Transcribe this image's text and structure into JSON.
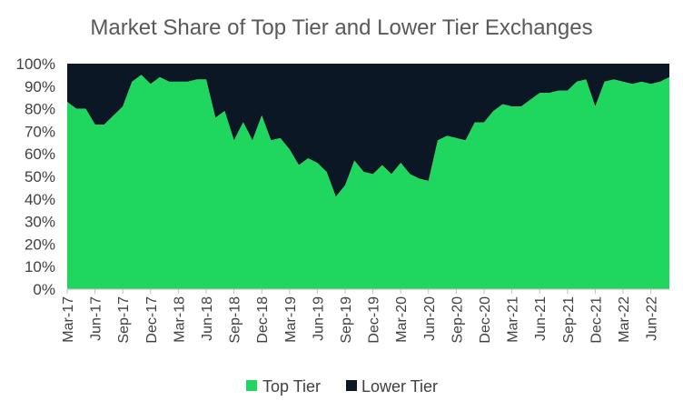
{
  "chart_data": {
    "type": "area",
    "stacked": "percent",
    "title": "Market Share of Top Tier and Lower Tier Exchanges",
    "xlabel": "",
    "ylabel": "",
    "ylim": [
      0,
      100
    ],
    "y_tick_labels": [
      "0%",
      "10%",
      "20%",
      "30%",
      "40%",
      "50%",
      "60%",
      "70%",
      "80%",
      "90%",
      "100%"
    ],
    "x_tick_labels": [
      "Mar-17",
      "Jun-17",
      "Sep-17",
      "Dec-17",
      "Mar-18",
      "Jun-18",
      "Sep-18",
      "Dec-18",
      "Mar-19",
      "Jun-19",
      "Sep-19",
      "Dec-19",
      "Mar-20",
      "Jun-20",
      "Sep-20",
      "Dec-20",
      "Mar-21",
      "Jun-21",
      "Sep-21",
      "Dec-21",
      "Mar-22",
      "Jun-22"
    ],
    "x": [
      "Mar-17",
      "Apr-17",
      "May-17",
      "Jun-17",
      "Jul-17",
      "Aug-17",
      "Sep-17",
      "Oct-17",
      "Nov-17",
      "Dec-17",
      "Jan-18",
      "Feb-18",
      "Mar-18",
      "Apr-18",
      "May-18",
      "Jun-18",
      "Jul-18",
      "Aug-18",
      "Sep-18",
      "Oct-18",
      "Nov-18",
      "Dec-18",
      "Jan-19",
      "Feb-19",
      "Mar-19",
      "Apr-19",
      "May-19",
      "Jun-19",
      "Jul-19",
      "Aug-19",
      "Sep-19",
      "Oct-19",
      "Nov-19",
      "Dec-19",
      "Jan-20",
      "Feb-20",
      "Mar-20",
      "Apr-20",
      "May-20",
      "Jun-20",
      "Jul-20",
      "Aug-20",
      "Sep-20",
      "Oct-20",
      "Nov-20",
      "Dec-20",
      "Jan-21",
      "Feb-21",
      "Mar-21",
      "Apr-21",
      "May-21",
      "Jun-21",
      "Jul-21",
      "Aug-21",
      "Sep-21",
      "Oct-21",
      "Nov-21",
      "Dec-21",
      "Jan-22",
      "Feb-22",
      "Mar-22",
      "Apr-22",
      "May-22",
      "Jun-22",
      "Jul-22",
      "Aug-22"
    ],
    "series": [
      {
        "name": "Top Tier",
        "color": "#1fd65f",
        "values": [
          83,
          80,
          80,
          73,
          73,
          77,
          81,
          92,
          95,
          91,
          94,
          92,
          92,
          92,
          93,
          93,
          76,
          79,
          66,
          74,
          66,
          77,
          66,
          67,
          62,
          55,
          58,
          56,
          52,
          41,
          46,
          57,
          52,
          51,
          55,
          51,
          56,
          51,
          49,
          48,
          66,
          68,
          67,
          66,
          74,
          74,
          79,
          82,
          81,
          81,
          84,
          87,
          87,
          88,
          88,
          92,
          93,
          81,
          92,
          93,
          92,
          91,
          92,
          91,
          92,
          94
        ]
      },
      {
        "name": "Lower Tier",
        "color": "#0c1726",
        "values": [
          17,
          20,
          20,
          27,
          27,
          23,
          19,
          8,
          5,
          9,
          6,
          8,
          8,
          8,
          7,
          7,
          24,
          21,
          34,
          26,
          34,
          23,
          34,
          33,
          38,
          45,
          42,
          44,
          48,
          59,
          54,
          43,
          48,
          49,
          45,
          49,
          44,
          49,
          51,
          52,
          34,
          32,
          33,
          34,
          26,
          26,
          21,
          18,
          19,
          19,
          16,
          13,
          13,
          12,
          12,
          8,
          7,
          19,
          8,
          7,
          8,
          9,
          8,
          9,
          8,
          6
        ]
      }
    ],
    "legend_position": "bottom",
    "grid": false
  }
}
